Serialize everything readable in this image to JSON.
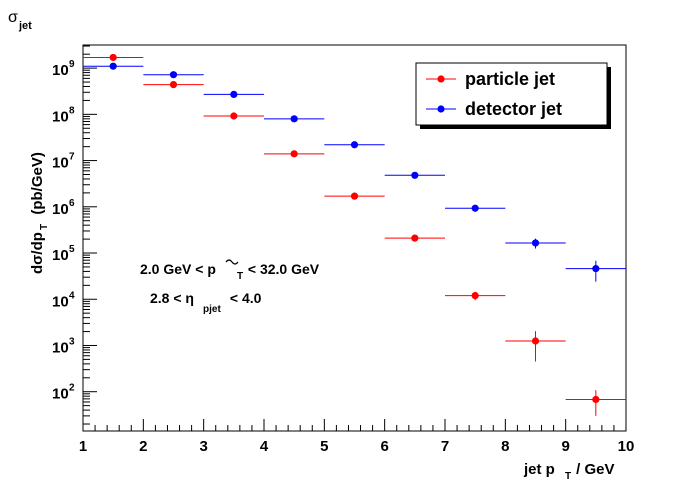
{
  "chart_data": {
    "type": "scatter",
    "title_main": "σ",
    "title_sub": "jet",
    "xlabel_main": "jet p",
    "xlabel_sub": "T",
    "xlabel_tail": " / GeV",
    "ylabel_main": "dσ/dp",
    "ylabel_sub": "T",
    "ylabel_tail": "  (pb/GeV)",
    "xlim": [
      1,
      10
    ],
    "ylim_log10": [
      1.15,
      9.5
    ],
    "y_scale": "log",
    "x_tick_labels": [
      "1",
      "2",
      "3",
      "4",
      "5",
      "6",
      "7",
      "8",
      "9",
      "10"
    ],
    "y_tick_labels": [
      {
        "base": "10",
        "exp": "2"
      },
      {
        "base": "10",
        "exp": "3"
      },
      {
        "base": "10",
        "exp": "4"
      },
      {
        "base": "10",
        "exp": "5"
      },
      {
        "base": "10",
        "exp": "6"
      },
      {
        "base": "10",
        "exp": "7"
      },
      {
        "base": "10",
        "exp": "8"
      },
      {
        "base": "10",
        "exp": "9"
      }
    ],
    "legend_position": "top-right",
    "annotation1": {
      "pre": "2.0 GeV < p",
      "sub": "T",
      "post": " < 32.0 GeV"
    },
    "annotation2": {
      "pre": "2.8 < η",
      "sub": "pjet",
      "post": " < 4.0"
    },
    "series": [
      {
        "name": "particle jet",
        "color": "#ff0000",
        "points": [
          {
            "x": 1.5,
            "y": 1700000000.0,
            "err_lo": 0,
            "err_hi": 0
          },
          {
            "x": 2.5,
            "y": 440000000.0,
            "err_lo": 0,
            "err_hi": 0
          },
          {
            "x": 3.5,
            "y": 92000000.0,
            "err_lo": 0,
            "err_hi": 0
          },
          {
            "x": 4.5,
            "y": 14000000.0,
            "err_lo": 0,
            "err_hi": 0
          },
          {
            "x": 5.5,
            "y": 1700000.0,
            "err_lo": 0,
            "err_hi": 0
          },
          {
            "x": 6.5,
            "y": 210000.0,
            "err_lo": 0,
            "err_hi": 0
          },
          {
            "x": 7.5,
            "y": 12000.0,
            "err_lo": 2500.0,
            "err_hi": 2500.0
          },
          {
            "x": 8.5,
            "y": 1250.0,
            "err_lo": 800.0,
            "err_hi": 800.0
          },
          {
            "x": 9.5,
            "y": 68,
            "err_lo": 38,
            "err_hi": 40
          }
        ]
      },
      {
        "name": "detector jet",
        "color": "#0000ff",
        "points": [
          {
            "x": 1.5,
            "y": 1100000000.0,
            "err_lo": 0,
            "err_hi": 0
          },
          {
            "x": 2.5,
            "y": 720000000.0,
            "err_lo": 0,
            "err_hi": 0
          },
          {
            "x": 3.5,
            "y": 270000000.0,
            "err_lo": 0,
            "err_hi": 0
          },
          {
            "x": 4.5,
            "y": 80000000.0,
            "err_lo": 0,
            "err_hi": 0
          },
          {
            "x": 5.5,
            "y": 22000000.0,
            "err_lo": 0,
            "err_hi": 0
          },
          {
            "x": 6.5,
            "y": 4800000.0,
            "err_lo": 0,
            "err_hi": 0
          },
          {
            "x": 7.5,
            "y": 930000.0,
            "err_lo": 0,
            "err_hi": 0
          },
          {
            "x": 8.5,
            "y": 165000.0,
            "err_lo": 40000.0,
            "err_hi": 40000.0
          },
          {
            "x": 9.5,
            "y": 46000.0,
            "err_lo": 22000.0,
            "err_hi": 22000.0
          }
        ]
      }
    ]
  }
}
